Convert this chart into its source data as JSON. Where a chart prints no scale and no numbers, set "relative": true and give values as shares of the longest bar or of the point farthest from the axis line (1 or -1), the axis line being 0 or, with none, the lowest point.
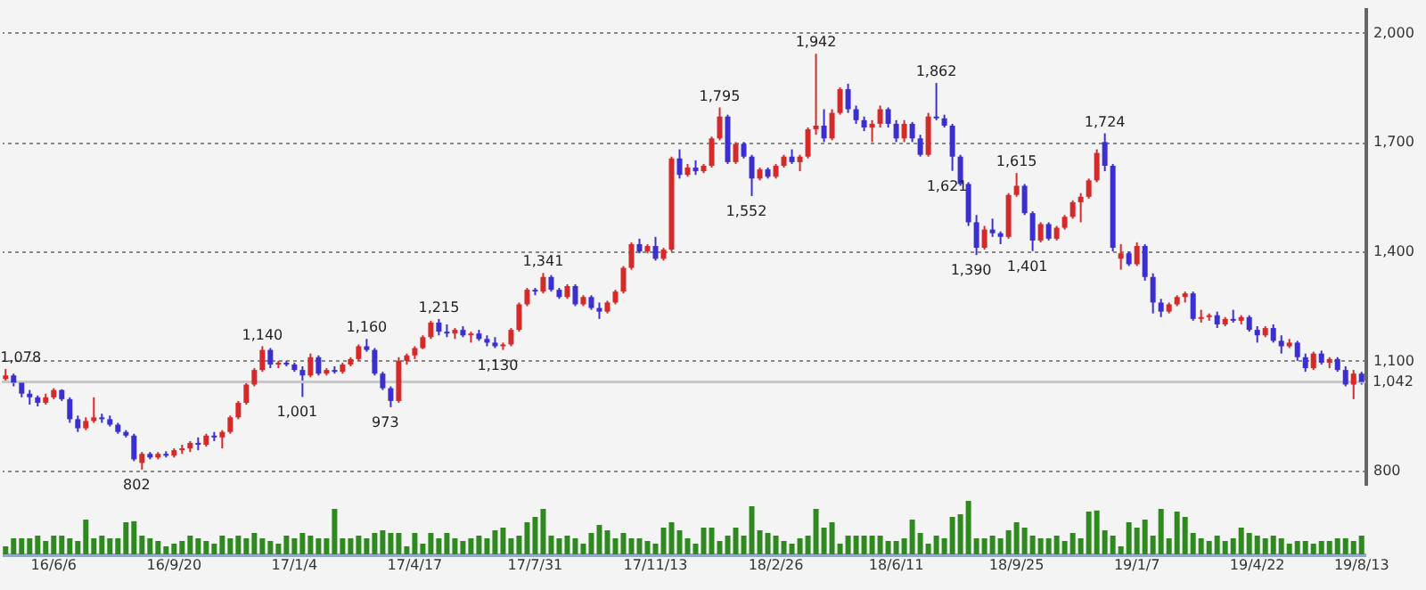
{
  "chart_data": [
    {
      "type": "candlestick",
      "tick_labels": "y",
      "grid": "y",
      "ylim": [
        760,
        2070
      ],
      "yticks": [
        {
          "value": 800,
          "label": "800"
        },
        {
          "value": 1100,
          "label": "1,100"
        },
        {
          "value": 1400,
          "label": "1,400"
        },
        {
          "value": 1700,
          "label": "1,700"
        },
        {
          "value": 2000,
          "label": "2,000"
        }
      ],
      "ref_lines": [
        {
          "axis": "y",
          "value": 1042,
          "label": "1,042",
          "color": "#c8c8c8"
        }
      ],
      "annotations": [
        {
          "text": "1,078",
          "y": 1078
        },
        {
          "text": "802",
          "y": 802
        },
        {
          "text": "1,140",
          "y": 1140
        },
        {
          "text": "1,001",
          "y": 1001
        },
        {
          "text": "1,160",
          "y": 1160
        },
        {
          "text": "973",
          "y": 973
        },
        {
          "text": "1,130",
          "y": 1130
        },
        {
          "text": "1,341",
          "y": 1341
        },
        {
          "text": "1,215",
          "y": 1215
        },
        {
          "text": "1,795",
          "y": 1795
        },
        {
          "text": "1,552",
          "y": 1552
        },
        {
          "text": "1,942",
          "y": 1942
        },
        {
          "text": "1,862",
          "y": 1862
        },
        {
          "text": "1,621",
          "y": 1621
        },
        {
          "text": "1,390",
          "y": 1390
        },
        {
          "text": "1,615",
          "y": 1615
        },
        {
          "text": "1,401",
          "y": 1401
        },
        {
          "text": "1,724",
          "y": 1724
        }
      ],
      "ohlc": [
        [
          1050,
          1078,
          1040,
          1060
        ],
        [
          1060,
          1065,
          1030,
          1040
        ],
        [
          1040,
          1045,
          1000,
          1010
        ],
        [
          1010,
          1020,
          980,
          1000
        ],
        [
          1000,
          1005,
          975,
          985
        ],
        [
          985,
          1010,
          980,
          1000
        ],
        [
          1000,
          1025,
          995,
          1020
        ],
        [
          1020,
          1022,
          990,
          995
        ],
        [
          995,
          1000,
          930,
          940
        ],
        [
          940,
          950,
          905,
          915
        ],
        [
          915,
          945,
          910,
          935
        ],
        [
          935,
          1000,
          930,
          945
        ],
        [
          945,
          955,
          930,
          940
        ],
        [
          940,
          950,
          920,
          925
        ],
        [
          925,
          930,
          900,
          905
        ],
        [
          905,
          910,
          890,
          895
        ],
        [
          895,
          900,
          825,
          830
        ],
        [
          820,
          850,
          802,
          845
        ],
        [
          845,
          850,
          830,
          835
        ],
        [
          835,
          850,
          830,
          845
        ],
        [
          845,
          852,
          835,
          840
        ],
        [
          840,
          860,
          835,
          855
        ],
        [
          855,
          870,
          845,
          860
        ],
        [
          860,
          880,
          850,
          875
        ],
        [
          875,
          890,
          855,
          870
        ],
        [
          870,
          900,
          865,
          895
        ],
        [
          895,
          905,
          880,
          890
        ],
        [
          890,
          910,
          860,
          905
        ],
        [
          905,
          950,
          900,
          945
        ],
        [
          945,
          990,
          940,
          985
        ],
        [
          985,
          1040,
          980,
          1035
        ],
        [
          1035,
          1080,
          1030,
          1075
        ],
        [
          1075,
          1140,
          1070,
          1130
        ],
        [
          1130,
          1135,
          1080,
          1090
        ],
        [
          1090,
          1100,
          1080,
          1095
        ],
        [
          1095,
          1100,
          1085,
          1090
        ],
        [
          1090,
          1095,
          1070,
          1075
        ],
        [
          1075,
          1085,
          1001,
          1060
        ],
        [
          1060,
          1120,
          1055,
          1110
        ],
        [
          1110,
          1115,
          1060,
          1065
        ],
        [
          1065,
          1080,
          1060,
          1075
        ],
        [
          1075,
          1085,
          1065,
          1070
        ],
        [
          1070,
          1095,
          1065,
          1090
        ],
        [
          1090,
          1110,
          1085,
          1105
        ],
        [
          1105,
          1145,
          1100,
          1140
        ],
        [
          1140,
          1160,
          1125,
          1130
        ],
        [
          1130,
          1135,
          1060,
          1065
        ],
        [
          1065,
          1070,
          1020,
          1025
        ],
        [
          1025,
          1030,
          973,
          990
        ],
        [
          990,
          1110,
          985,
          1100
        ],
        [
          1100,
          1120,
          1090,
          1115
        ],
        [
          1115,
          1140,
          1105,
          1135
        ],
        [
          1135,
          1170,
          1132,
          1165
        ],
        [
          1165,
          1210,
          1160,
          1205
        ],
        [
          1205,
          1215,
          1170,
          1180
        ],
        [
          1180,
          1200,
          1165,
          1175
        ],
        [
          1175,
          1190,
          1160,
          1185
        ],
        [
          1185,
          1195,
          1165,
          1170
        ],
        [
          1170,
          1180,
          1150,
          1175
        ],
        [
          1175,
          1185,
          1155,
          1160
        ],
        [
          1160,
          1170,
          1140,
          1150
        ],
        [
          1150,
          1165,
          1135,
          1140
        ],
        [
          1140,
          1150,
          1130,
          1145
        ],
        [
          1145,
          1190,
          1140,
          1185
        ],
        [
          1185,
          1260,
          1180,
          1255
        ],
        [
          1255,
          1300,
          1250,
          1295
        ],
        [
          1295,
          1300,
          1280,
          1290
        ],
        [
          1290,
          1341,
          1285,
          1330
        ],
        [
          1330,
          1335,
          1290,
          1295
        ],
        [
          1295,
          1300,
          1270,
          1275
        ],
        [
          1275,
          1310,
          1270,
          1305
        ],
        [
          1305,
          1310,
          1250,
          1255
        ],
        [
          1255,
          1280,
          1250,
          1275
        ],
        [
          1275,
          1280,
          1240,
          1245
        ],
        [
          1245,
          1260,
          1215,
          1235
        ],
        [
          1235,
          1265,
          1230,
          1260
        ],
        [
          1260,
          1295,
          1255,
          1290
        ],
        [
          1290,
          1360,
          1285,
          1355
        ],
        [
          1355,
          1425,
          1350,
          1420
        ],
        [
          1420,
          1435,
          1395,
          1400
        ],
        [
          1400,
          1420,
          1395,
          1415
        ],
        [
          1415,
          1440,
          1375,
          1380
        ],
        [
          1380,
          1410,
          1375,
          1405
        ],
        [
          1405,
          1660,
          1400,
          1655
        ],
        [
          1655,
          1680,
          1600,
          1610
        ],
        [
          1610,
          1640,
          1605,
          1630
        ],
        [
          1630,
          1650,
          1610,
          1620
        ],
        [
          1620,
          1640,
          1615,
          1635
        ],
        [
          1635,
          1715,
          1630,
          1710
        ],
        [
          1710,
          1795,
          1705,
          1770
        ],
        [
          1770,
          1775,
          1640,
          1645
        ],
        [
          1645,
          1700,
          1640,
          1695
        ],
        [
          1695,
          1700,
          1655,
          1660
        ],
        [
          1660,
          1665,
          1552,
          1600
        ],
        [
          1600,
          1630,
          1595,
          1625
        ],
        [
          1625,
          1630,
          1600,
          1605
        ],
        [
          1605,
          1640,
          1600,
          1635
        ],
        [
          1635,
          1665,
          1630,
          1660
        ],
        [
          1660,
          1680,
          1640,
          1645
        ],
        [
          1645,
          1665,
          1620,
          1660
        ],
        [
          1660,
          1740,
          1655,
          1735
        ],
        [
          1735,
          1942,
          1720,
          1745
        ],
        [
          1745,
          1790,
          1700,
          1710
        ],
        [
          1710,
          1790,
          1705,
          1780
        ],
        [
          1780,
          1850,
          1775,
          1845
        ],
        [
          1845,
          1860,
          1780,
          1790
        ],
        [
          1790,
          1800,
          1750,
          1760
        ],
        [
          1760,
          1770,
          1730,
          1740
        ],
        [
          1740,
          1760,
          1700,
          1750
        ],
        [
          1750,
          1800,
          1740,
          1790
        ],
        [
          1790,
          1795,
          1740,
          1750
        ],
        [
          1750,
          1760,
          1700,
          1710
        ],
        [
          1710,
          1760,
          1700,
          1750
        ],
        [
          1750,
          1755,
          1700,
          1710
        ],
        [
          1710,
          1720,
          1660,
          1665
        ],
        [
          1665,
          1780,
          1660,
          1770
        ],
        [
          1770,
          1862,
          1760,
          1765
        ],
        [
          1765,
          1775,
          1740,
          1745
        ],
        [
          1745,
          1750,
          1621,
          1660
        ],
        [
          1660,
          1665,
          1580,
          1585
        ],
        [
          1585,
          1590,
          1470,
          1480
        ],
        [
          1480,
          1500,
          1390,
          1410
        ],
        [
          1410,
          1470,
          1405,
          1460
        ],
        [
          1460,
          1490,
          1440,
          1450
        ],
        [
          1450,
          1455,
          1420,
          1440
        ],
        [
          1440,
          1560,
          1435,
          1555
        ],
        [
          1555,
          1615,
          1550,
          1580
        ],
        [
          1580,
          1585,
          1500,
          1505
        ],
        [
          1505,
          1510,
          1401,
          1430
        ],
        [
          1430,
          1480,
          1425,
          1475
        ],
        [
          1475,
          1480,
          1430,
          1435
        ],
        [
          1435,
          1470,
          1430,
          1465
        ],
        [
          1465,
          1500,
          1460,
          1495
        ],
        [
          1495,
          1540,
          1490,
          1535
        ],
        [
          1535,
          1560,
          1480,
          1550
        ],
        [
          1550,
          1600,
          1545,
          1595
        ],
        [
          1595,
          1680,
          1590,
          1670
        ],
        [
          1700,
          1724,
          1620,
          1635
        ],
        [
          1635,
          1640,
          1400,
          1410
        ],
        [
          1380,
          1420,
          1350,
          1395
        ],
        [
          1395,
          1400,
          1360,
          1365
        ],
        [
          1365,
          1425,
          1360,
          1415
        ],
        [
          1415,
          1420,
          1320,
          1330
        ],
        [
          1330,
          1340,
          1230,
          1260
        ],
        [
          1260,
          1270,
          1220,
          1235
        ],
        [
          1235,
          1260,
          1230,
          1255
        ],
        [
          1255,
          1280,
          1250,
          1275
        ],
        [
          1275,
          1290,
          1260,
          1285
        ],
        [
          1285,
          1290,
          1210,
          1215
        ],
        [
          1215,
          1240,
          1205,
          1220
        ],
        [
          1220,
          1230,
          1210,
          1225
        ],
        [
          1225,
          1235,
          1190,
          1200
        ],
        [
          1200,
          1220,
          1195,
          1215
        ],
        [
          1215,
          1240,
          1205,
          1210
        ],
        [
          1210,
          1225,
          1200,
          1220
        ],
        [
          1220,
          1225,
          1180,
          1185
        ],
        [
          1185,
          1195,
          1150,
          1170
        ],
        [
          1170,
          1195,
          1165,
          1190
        ],
        [
          1190,
          1200,
          1150,
          1155
        ],
        [
          1155,
          1170,
          1120,
          1140
        ],
        [
          1140,
          1160,
          1135,
          1150
        ],
        [
          1150,
          1155,
          1100,
          1110
        ],
        [
          1110,
          1120,
          1070,
          1080
        ],
        [
          1080,
          1125,
          1075,
          1120
        ],
        [
          1120,
          1128,
          1090,
          1095
        ],
        [
          1095,
          1110,
          1080,
          1105
        ],
        [
          1105,
          1110,
          1070,
          1075
        ],
        [
          1075,
          1085,
          1030,
          1035
        ],
        [
          1035,
          1075,
          995,
          1065
        ],
        [
          1065,
          1070,
          1035,
          1042
        ]
      ],
      "colors": [
        "#d42a2a",
        "#3b2fd0",
        "#3b2fd0",
        "#3b2fd0",
        "#3b2fd0",
        "#d42a2a",
        "#d42a2a",
        "#3b2fd0",
        "#3b2fd0",
        "#3b2fd0",
        "#d42a2a",
        "#d42a2a",
        "#3b2fd0",
        "#3b2fd0",
        "#3b2fd0",
        "#3b2fd0",
        "#3b2fd0",
        "#d42a2a",
        "#3b2fd0",
        "#d42a2a",
        "#3b2fd0",
        "#d42a2a",
        "#d42a2a",
        "#d42a2a",
        "#3b2fd0",
        "#d42a2a",
        "#3b2fd0",
        "#d42a2a",
        "#d42a2a",
        "#d42a2a",
        "#d42a2a",
        "#d42a2a",
        "#d42a2a",
        "#3b2fd0",
        "#d42a2a",
        "#3b2fd0",
        "#3b2fd0",
        "#3b2fd0",
        "#d42a2a",
        "#3b2fd0",
        "#d42a2a",
        "#3b2fd0",
        "#d42a2a",
        "#d42a2a",
        "#d42a2a",
        "#3b2fd0",
        "#3b2fd0",
        "#3b2fd0",
        "#3b2fd0",
        "#d42a2a",
        "#d42a2a",
        "#d42a2a",
        "#d42a2a",
        "#d42a2a",
        "#3b2fd0",
        "#3b2fd0",
        "#d42a2a",
        "#3b2fd0",
        "#d42a2a",
        "#3b2fd0",
        "#3b2fd0",
        "#3b2fd0",
        "#d42a2a",
        "#d42a2a",
        "#d42a2a",
        "#d42a2a",
        "#3b2fd0",
        "#d42a2a",
        "#3b2fd0",
        "#3b2fd0",
        "#d42a2a",
        "#3b2fd0",
        "#d42a2a",
        "#3b2fd0",
        "#3b2fd0",
        "#d42a2a",
        "#d42a2a",
        "#d42a2a",
        "#d42a2a",
        "#3b2fd0",
        "#d42a2a",
        "#3b2fd0",
        "#d42a2a",
        "#d42a2a",
        "#3b2fd0",
        "#d42a2a",
        "#3b2fd0",
        "#d42a2a",
        "#d42a2a",
        "#d42a2a",
        "#3b2fd0",
        "#d42a2a",
        "#3b2fd0",
        "#3b2fd0",
        "#d42a2a",
        "#3b2fd0",
        "#d42a2a",
        "#d42a2a",
        "#3b2fd0",
        "#d42a2a",
        "#d42a2a",
        "#d42a2a",
        "#3b2fd0",
        "#d42a2a",
        "#d42a2a",
        "#3b2fd0",
        "#3b2fd0",
        "#3b2fd0",
        "#d42a2a",
        "#d42a2a",
        "#3b2fd0",
        "#3b2fd0",
        "#d42a2a",
        "#3b2fd0",
        "#3b2fd0",
        "#d42a2a",
        "#3b2fd0",
        "#3b2fd0",
        "#3b2fd0",
        "#3b2fd0",
        "#3b2fd0",
        "#3b2fd0",
        "#d42a2a",
        "#3b2fd0",
        "#3b2fd0",
        "#d42a2a",
        "#d42a2a",
        "#3b2fd0",
        "#3b2fd0",
        "#d42a2a",
        "#3b2fd0",
        "#d42a2a",
        "#d42a2a",
        "#d42a2a",
        "#d42a2a",
        "#d42a2a",
        "#d42a2a",
        "#3b2fd0",
        "#3b2fd0",
        "#d42a2a",
        "#3b2fd0",
        "#d42a2a",
        "#3b2fd0",
        "#3b2fd0",
        "#3b2fd0",
        "#d42a2a",
        "#d42a2a",
        "#d42a2a",
        "#3b2fd0",
        "#d42a2a",
        "#d42a2a",
        "#3b2fd0",
        "#d42a2a",
        "#3b2fd0",
        "#d42a2a",
        "#3b2fd0",
        "#3b2fd0",
        "#d42a2a",
        "#3b2fd0",
        "#3b2fd0",
        "#d42a2a",
        "#3b2fd0",
        "#3b2fd0",
        "#d42a2a",
        "#3b2fd0",
        "#d42a2a",
        "#3b2fd0",
        "#3b2fd0",
        "#d42a2a",
        "#3b2fd0"
      ]
    },
    {
      "type": "bar",
      "relative": true,
      "tick_labels": "x",
      "categories": [
        null,
        null,
        null,
        null,
        null,
        null,
        "16/6/6",
        null,
        null,
        null,
        null,
        null,
        null,
        null,
        null,
        null,
        null,
        null,
        null,
        null,
        null,
        "16/9/20",
        null,
        null,
        null,
        null,
        null,
        null,
        null,
        null,
        null,
        null,
        null,
        null,
        null,
        null,
        "17/1/4",
        null,
        null,
        null,
        null,
        null,
        null,
        null,
        null,
        null,
        null,
        null,
        null,
        null,
        null,
        "17/4/17",
        null,
        null,
        null,
        null,
        null,
        null,
        null,
        null,
        null,
        null,
        null,
        null,
        null,
        null,
        "17/7/31",
        null,
        null,
        null,
        null,
        null,
        null,
        null,
        null,
        null,
        null,
        null,
        null,
        null,
        null,
        "17/11/13",
        null,
        null,
        null,
        null,
        null,
        null,
        null,
        null,
        null,
        null,
        null,
        null,
        null,
        null,
        "18/2/26",
        null,
        null,
        null,
        null,
        null,
        null,
        null,
        null,
        null,
        null,
        null,
        null,
        null,
        null,
        "18/6/11",
        null,
        null,
        null,
        null,
        null,
        null,
        null,
        null,
        null,
        null,
        null,
        null,
        null,
        null,
        "18/9/25",
        null,
        null,
        null,
        null,
        null,
        null,
        null,
        null,
        null,
        null,
        null,
        null,
        null,
        null,
        "19/1/7",
        null,
        null,
        null,
        null,
        null,
        null,
        null,
        null,
        null,
        null,
        null,
        null,
        null,
        null,
        "19/4/22",
        null,
        null,
        null,
        null,
        null,
        null,
        null,
        null,
        null,
        null,
        null,
        null,
        "19/8/13"
      ],
      "series": [
        {
          "color": "#2e8a1e",
          "values": [
            0.15,
            0.3,
            0.3,
            0.3,
            0.35,
            0.25,
            0.35,
            0.35,
            0.3,
            0.25,
            0.65,
            0.3,
            0.35,
            0.3,
            0.3,
            0.6,
            0.62,
            0.35,
            0.3,
            0.25,
            0.15,
            0.2,
            0.25,
            0.35,
            0.3,
            0.25,
            0.2,
            0.35,
            0.3,
            0.35,
            0.3,
            0.4,
            0.3,
            0.25,
            0.2,
            0.35,
            0.3,
            0.4,
            0.35,
            0.3,
            0.3,
            0.85,
            0.3,
            0.3,
            0.35,
            0.3,
            0.4,
            0.45,
            0.4,
            0.4,
            0.15,
            0.4,
            0.2,
            0.4,
            0.3,
            0.4,
            0.3,
            0.25,
            0.3,
            0.35,
            0.3,
            0.45,
            0.5,
            0.3,
            0.35,
            0.6,
            0.7,
            0.85,
            0.35,
            0.3,
            0.35,
            0.3,
            0.2,
            0.4,
            0.55,
            0.45,
            0.3,
            0.4,
            0.3,
            0.3,
            0.25,
            0.2,
            0.5,
            0.6,
            0.45,
            0.3,
            0.2,
            0.5,
            0.5,
            0.25,
            0.35,
            0.5,
            0.35,
            0.9,
            0.45,
            0.4,
            0.35,
            0.25,
            0.2,
            0.3,
            0.35,
            0.85,
            0.5,
            0.6,
            0.2,
            0.35,
            0.35,
            0.35,
            0.35,
            0.35,
            0.25,
            0.25,
            0.3,
            0.65,
            0.4,
            0.2,
            0.35,
            0.3,
            0.7,
            0.75,
            1.0,
            0.3,
            0.3,
            0.35,
            0.3,
            0.45,
            0.6,
            0.5,
            0.35,
            0.3,
            0.3,
            0.35,
            0.25,
            0.4,
            0.3,
            0.8,
            0.82,
            0.45,
            0.35,
            0.15,
            0.6,
            0.5,
            0.65,
            0.35,
            0.85,
            0.3,
            0.8,
            0.7,
            0.4,
            0.3,
            0.25,
            0.35,
            0.25,
            0.3,
            0.5,
            0.4,
            0.35,
            0.3,
            0.35,
            0.3,
            0.2,
            0.25,
            0.25,
            0.2,
            0.25,
            0.25,
            0.3,
            0.3,
            0.25,
            0.35
          ]
        }
      ]
    }
  ]
}
